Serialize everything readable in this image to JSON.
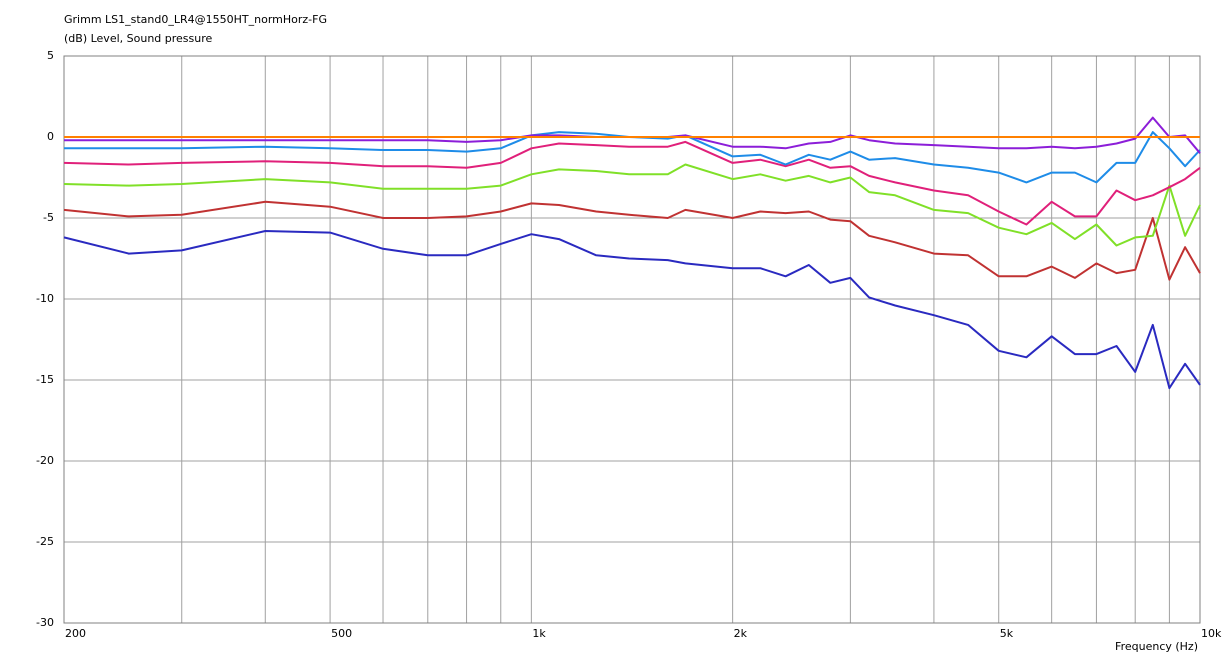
{
  "chart_data": {
    "type": "line",
    "title": "Grimm LS1_stand0_LR4@1550HT_normHorz-FG",
    "y_label": "(dB)  Level, Sound pressure",
    "x_label": "Frequency  (Hz)",
    "x_scale": "log",
    "grid": true,
    "xlim": [
      200,
      10000
    ],
    "ylim": [
      -30,
      5
    ],
    "xticks": [
      200,
      500,
      {
        "value": 1000,
        "label": "1k"
      },
      {
        "value": 2000,
        "label": "2k"
      },
      {
        "value": 5000,
        "label": "5k"
      },
      {
        "value": 10000,
        "label": "10k"
      }
    ],
    "x_minor_grid": [
      300,
      400,
      600,
      700,
      800,
      900,
      3000,
      4000,
      6000,
      7000,
      8000,
      9000
    ],
    "yticks": [
      5,
      0,
      -5,
      -10,
      -15,
      -20,
      -25,
      -30
    ],
    "x": [
      200,
      250,
      300,
      400,
      500,
      600,
      700,
      800,
      900,
      1000,
      1100,
      1250,
      1400,
      1600,
      1700,
      2000,
      2200,
      2400,
      2600,
      2800,
      3000,
      3200,
      3500,
      4000,
      4500,
      5000,
      5500,
      6000,
      6500,
      7000,
      7500,
      8000,
      8500,
      9000,
      9500,
      10000
    ],
    "series": [
      {
        "color": "#2a2ac0",
        "values": [
          -6.2,
          -7.2,
          -7.0,
          -5.8,
          -5.9,
          -6.9,
          -7.3,
          -7.3,
          -6.6,
          -6.0,
          -6.3,
          -7.3,
          -7.5,
          -7.6,
          -7.8,
          -8.1,
          -8.1,
          -8.6,
          -7.9,
          -9.0,
          -8.7,
          -9.9,
          -10.4,
          -11.0,
          -11.6,
          -13.2,
          -13.6,
          -12.3,
          -13.4,
          -13.4,
          -12.9,
          -14.5,
          -11.6,
          -15.5,
          -14.0,
          -15.3
        ]
      },
      {
        "color": "#c03232",
        "values": [
          -4.5,
          -4.9,
          -4.8,
          -4.0,
          -4.3,
          -5.0,
          -5.0,
          -4.9,
          -4.6,
          -4.1,
          -4.2,
          -4.6,
          -4.8,
          -5.0,
          -4.5,
          -5.0,
          -4.6,
          -4.7,
          -4.6,
          -5.1,
          -5.2,
          -6.1,
          -6.5,
          -7.2,
          -7.3,
          -8.6,
          -8.6,
          -8.0,
          -8.7,
          -7.8,
          -8.4,
          -8.2,
          -5.0,
          -8.8,
          -6.8,
          -8.4
        ]
      },
      {
        "color": "#80e028",
        "values": [
          -2.9,
          -3.0,
          -2.9,
          -2.6,
          -2.8,
          -3.2,
          -3.2,
          -3.2,
          -3.0,
          -2.3,
          -2.0,
          -2.1,
          -2.3,
          -2.3,
          -1.7,
          -2.6,
          -2.3,
          -2.7,
          -2.4,
          -2.8,
          -2.5,
          -3.4,
          -3.6,
          -4.5,
          -4.7,
          -5.6,
          -6.0,
          -5.3,
          -6.3,
          -5.4,
          -6.7,
          -6.2,
          -6.1,
          -3.0,
          -6.1,
          -4.2
        ]
      },
      {
        "color": "#e0207a",
        "values": [
          -1.6,
          -1.7,
          -1.6,
          -1.5,
          -1.6,
          -1.8,
          -1.8,
          -1.9,
          -1.6,
          -0.7,
          -0.4,
          -0.5,
          -0.6,
          -0.6,
          -0.3,
          -1.6,
          -1.4,
          -1.8,
          -1.4,
          -1.9,
          -1.8,
          -2.4,
          -2.8,
          -3.3,
          -3.6,
          -4.6,
          -5.4,
          -4.0,
          -4.9,
          -4.9,
          -3.3,
          -3.9,
          -3.6,
          -3.1,
          -2.6,
          -1.9
        ]
      },
      {
        "color": "#1e8ce8",
        "values": [
          -0.7,
          -0.7,
          -0.7,
          -0.6,
          -0.7,
          -0.8,
          -0.8,
          -0.9,
          -0.7,
          0.1,
          0.3,
          0.2,
          0,
          -0.1,
          0.1,
          -1.2,
          -1.1,
          -1.7,
          -1.1,
          -1.4,
          -0.9,
          -1.4,
          -1.3,
          -1.7,
          -1.9,
          -2.2,
          -2.8,
          -2.2,
          -2.2,
          -2.8,
          -1.6,
          -1.6,
          0.3,
          -0.7,
          -1.8,
          -0.8
        ]
      },
      {
        "color": "#8c1ed8",
        "values": [
          -0.2,
          -0.2,
          -0.2,
          -0.2,
          -0.2,
          -0.2,
          -0.2,
          -0.3,
          -0.2,
          0.1,
          0.1,
          0,
          0,
          0,
          0.1,
          -0.6,
          -0.6,
          -0.7,
          -0.4,
          -0.3,
          0.1,
          -0.2,
          -0.4,
          -0.5,
          -0.6,
          -0.7,
          -0.7,
          -0.6,
          -0.7,
          -0.6,
          -0.4,
          -0.1,
          1.2,
          0,
          0.1,
          -1.0
        ]
      },
      {
        "color": "#ff8000",
        "values": [
          0,
          0,
          0,
          0,
          0,
          0,
          0,
          0,
          0,
          0,
          0,
          0,
          0,
          0,
          0,
          0,
          0,
          0,
          0,
          0,
          0,
          0,
          0,
          0,
          0,
          0,
          0,
          0,
          0,
          0,
          0,
          0,
          0,
          0,
          0,
          0
        ]
      }
    ]
  }
}
